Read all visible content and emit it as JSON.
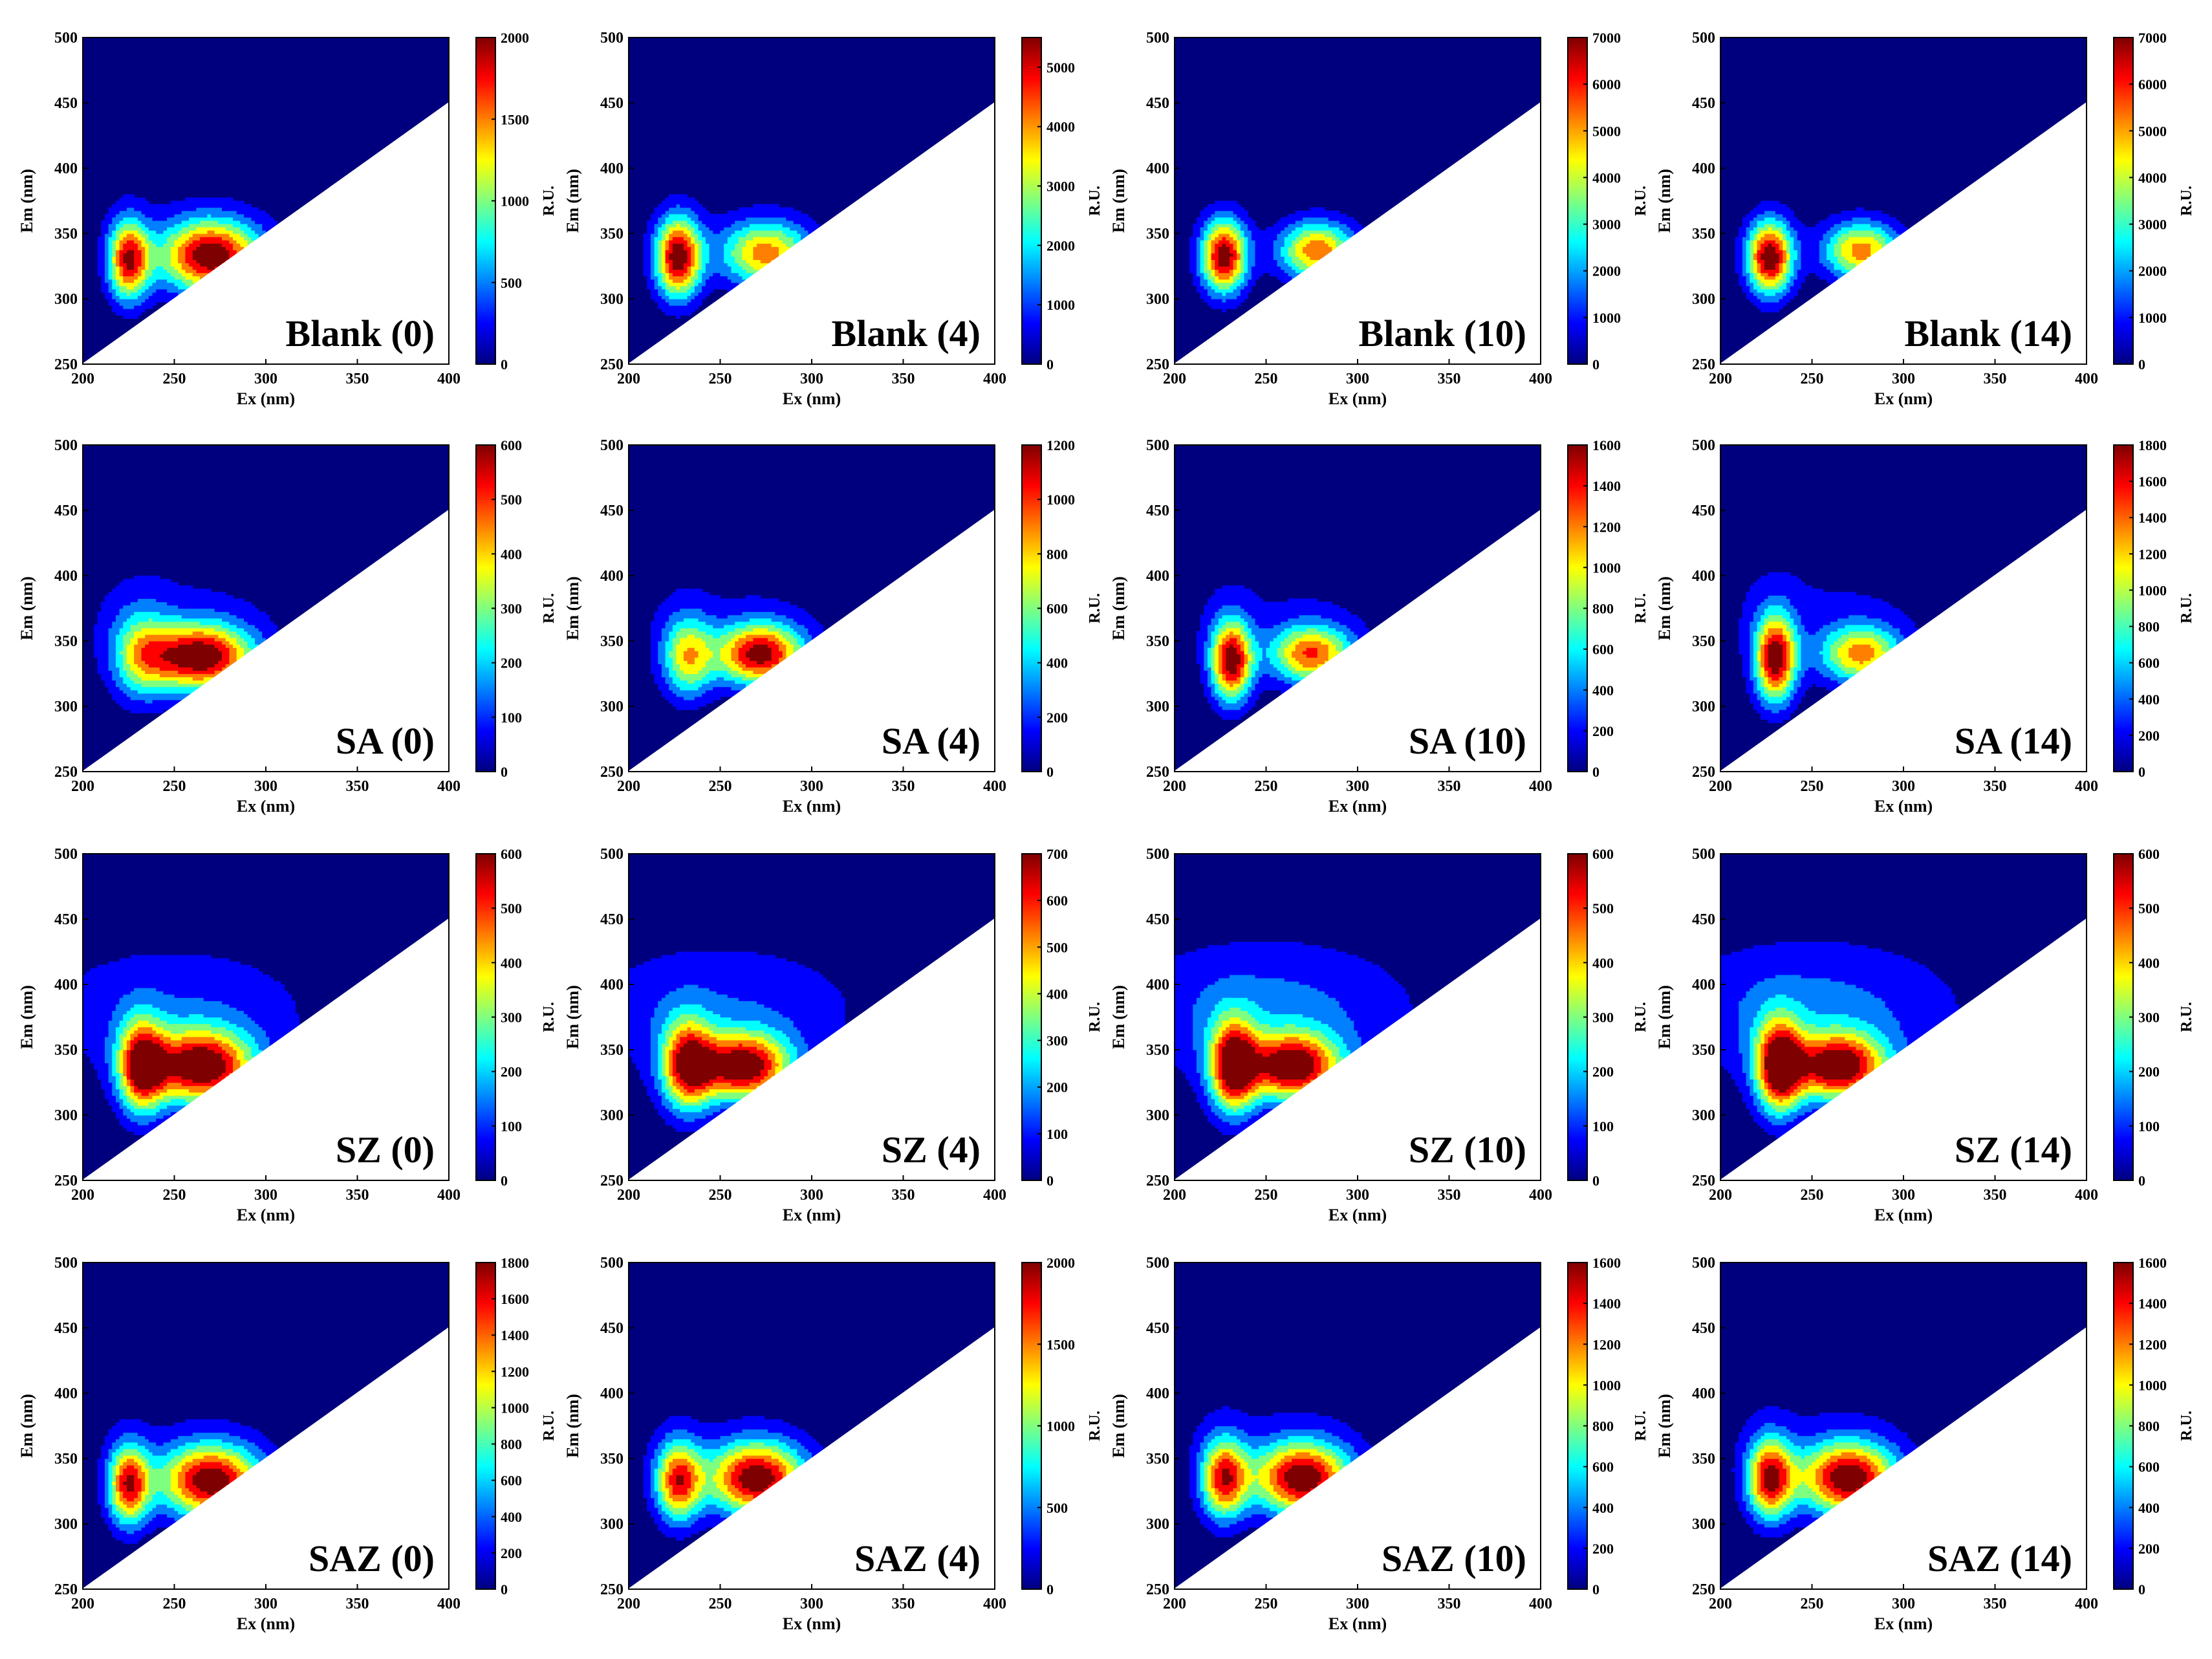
{
  "figure": {
    "rows": 4,
    "cols": 4,
    "colormap": [
      "#00007f",
      "#0000ff",
      "#007fff",
      "#00ffff",
      "#7fff7f",
      "#ffff00",
      "#ff7f00",
      "#ff0000",
      "#7f0000"
    ],
    "background_color": "#00008b",
    "contour_line_color": "#000000"
  },
  "chart_data": [
    {
      "type": "heatmap",
      "label": "Blank (0)",
      "xlabel": "Ex (nm)",
      "ylabel": "Em (nm)",
      "xlim": [
        200,
        400
      ],
      "ylim": [
        250,
        500
      ],
      "x_ticks": [
        200,
        250,
        300,
        350,
        400
      ],
      "y_ticks": [
        250,
        300,
        350,
        400,
        450,
        500
      ],
      "colorbar": {
        "label": "R.U.",
        "min": 0,
        "max": 2000,
        "ticks": [
          0,
          500,
          1000,
          1500,
          2000
        ]
      },
      "peaks": [
        {
          "ex": 225,
          "em": 330,
          "intensity": 1700,
          "sx": 8,
          "sy": 22
        },
        {
          "ex": 270,
          "em": 333,
          "intensity": 1950,
          "sx": 20,
          "sy": 20
        }
      ],
      "background_level": 80
    },
    {
      "type": "heatmap",
      "label": "Blank (4)",
      "xlabel": "Ex (nm)",
      "ylabel": "Em (nm)",
      "xlim": [
        200,
        400
      ],
      "ylim": [
        250,
        500
      ],
      "x_ticks": [
        200,
        250,
        300,
        350,
        400
      ],
      "y_ticks": [
        250,
        300,
        350,
        400,
        450,
        500
      ],
      "colorbar": {
        "label": "R.U.",
        "min": 0,
        "max": 5500,
        "ticks": [
          0,
          1000,
          2000,
          3000,
          4000,
          5000
        ]
      },
      "peaks": [
        {
          "ex": 227,
          "em": 332,
          "intensity": 5300,
          "sx": 9,
          "sy": 22
        },
        {
          "ex": 275,
          "em": 335,
          "intensity": 3900,
          "sx": 18,
          "sy": 18
        }
      ],
      "background_level": 150
    },
    {
      "type": "heatmap",
      "label": "Blank (10)",
      "xlabel": "Ex (nm)",
      "ylabel": "Em (nm)",
      "xlim": [
        200,
        400
      ],
      "ylim": [
        250,
        500
      ],
      "x_ticks": [
        200,
        250,
        300,
        350,
        400
      ],
      "y_ticks": [
        250,
        300,
        350,
        400,
        450,
        500
      ],
      "colorbar": {
        "label": "R.U.",
        "min": 0,
        "max": 7000,
        "ticks": [
          0,
          1000,
          2000,
          3000,
          4000,
          5000,
          6000,
          7000
        ]
      },
      "peaks": [
        {
          "ex": 227,
          "em": 333,
          "intensity": 6800,
          "sx": 9,
          "sy": 20
        },
        {
          "ex": 278,
          "em": 337,
          "intensity": 5200,
          "sx": 15,
          "sy": 16
        }
      ],
      "background_level": 100
    },
    {
      "type": "heatmap",
      "label": "Blank (14)",
      "xlabel": "Ex (nm)",
      "ylabel": "Em (nm)",
      "xlim": [
        200,
        400
      ],
      "ylim": [
        250,
        500
      ],
      "x_ticks": [
        200,
        250,
        300,
        350,
        400
      ],
      "y_ticks": [
        250,
        300,
        350,
        400,
        450,
        500
      ],
      "colorbar": {
        "label": "R.U.",
        "min": 0,
        "max": 7000,
        "ticks": [
          0,
          1000,
          2000,
          3000,
          4000,
          5000,
          6000,
          7000
        ]
      },
      "peaks": [
        {
          "ex": 227,
          "em": 332,
          "intensity": 6900,
          "sx": 9,
          "sy": 20
        },
        {
          "ex": 277,
          "em": 337,
          "intensity": 5000,
          "sx": 15,
          "sy": 16
        }
      ],
      "background_level": 100
    },
    {
      "type": "heatmap",
      "label": "SA (0)",
      "xlabel": "Ex (nm)",
      "ylabel": "Em (nm)",
      "xlim": [
        200,
        400
      ],
      "ylim": [
        250,
        500
      ],
      "x_ticks": [
        200,
        250,
        300,
        350,
        400
      ],
      "y_ticks": [
        250,
        300,
        350,
        400,
        450,
        500
      ],
      "colorbar": {
        "label": "R.U.",
        "min": 0,
        "max": 600,
        "ticks": [
          0,
          100,
          200,
          300,
          400,
          500,
          600
        ]
      },
      "peaks": [
        {
          "ex": 232,
          "em": 340,
          "intensity": 280,
          "sx": 12,
          "sy": 25
        },
        {
          "ex": 265,
          "em": 338,
          "intensity": 580,
          "sx": 20,
          "sy": 18
        }
      ],
      "background_level": 60
    },
    {
      "type": "heatmap",
      "label": "SA (4)",
      "xlabel": "Ex (nm)",
      "ylabel": "Em (nm)",
      "xlim": [
        200,
        400
      ],
      "ylim": [
        250,
        500
      ],
      "x_ticks": [
        200,
        250,
        300,
        350,
        400
      ],
      "y_ticks": [
        250,
        300,
        350,
        400,
        450,
        500
      ],
      "colorbar": {
        "label": "R.U.",
        "min": 0,
        "max": 1200,
        "ticks": [
          0,
          200,
          400,
          600,
          800,
          1000,
          1200
        ]
      },
      "peaks": [
        {
          "ex": 232,
          "em": 338,
          "intensity": 700,
          "sx": 10,
          "sy": 22
        },
        {
          "ex": 272,
          "em": 340,
          "intensity": 1100,
          "sx": 17,
          "sy": 17
        }
      ],
      "background_level": 100
    },
    {
      "type": "heatmap",
      "label": "SA (10)",
      "xlabel": "Ex (nm)",
      "ylabel": "Em (nm)",
      "xlim": [
        200,
        400
      ],
      "ylim": [
        250,
        500
      ],
      "x_ticks": [
        200,
        250,
        300,
        350,
        400
      ],
      "y_ticks": [
        250,
        300,
        350,
        400,
        450,
        500
      ],
      "colorbar": {
        "label": "R.U.",
        "min": 0,
        "max": 1600,
        "ticks": [
          0,
          200,
          400,
          600,
          800,
          1000,
          1200,
          1400,
          1600
        ]
      },
      "peaks": [
        {
          "ex": 231,
          "em": 335,
          "intensity": 1500,
          "sx": 8,
          "sy": 22
        },
        {
          "ex": 275,
          "em": 340,
          "intensity": 1200,
          "sx": 16,
          "sy": 16
        }
      ],
      "background_level": 150
    },
    {
      "type": "heatmap",
      "label": "SA (14)",
      "xlabel": "Ex (nm)",
      "ylabel": "Em (nm)",
      "xlim": [
        200,
        400
      ],
      "ylim": [
        250,
        500
      ],
      "x_ticks": [
        200,
        250,
        300,
        350,
        400
      ],
      "y_ticks": [
        250,
        300,
        350,
        400,
        450,
        500
      ],
      "colorbar": {
        "label": "R.U.",
        "min": 0,
        "max": 1800,
        "ticks": [
          0,
          200,
          400,
          600,
          800,
          1000,
          1200,
          1400,
          1600,
          1800
        ]
      },
      "peaks": [
        {
          "ex": 230,
          "em": 337,
          "intensity": 1700,
          "sx": 8,
          "sy": 24
        },
        {
          "ex": 277,
          "em": 340,
          "intensity": 1200,
          "sx": 16,
          "sy": 16
        }
      ],
      "background_level": 200
    },
    {
      "type": "heatmap",
      "label": "SZ (0)",
      "xlabel": "Ex (nm)",
      "ylabel": "Em (nm)",
      "xlim": [
        200,
        400
      ],
      "ylim": [
        250,
        500
      ],
      "x_ticks": [
        200,
        250,
        300,
        350,
        400
      ],
      "y_ticks": [
        250,
        300,
        350,
        400,
        450,
        500
      ],
      "colorbar": {
        "label": "R.U.",
        "min": 0,
        "max": 600,
        "ticks": [
          0,
          100,
          200,
          300,
          400,
          500,
          600
        ]
      },
      "peaks": [
        {
          "ex": 232,
          "em": 337,
          "intensity": 500,
          "sx": 9,
          "sy": 25
        },
        {
          "ex": 265,
          "em": 337,
          "intensity": 580,
          "sx": 20,
          "sy": 20
        }
      ],
      "background_level": 120
    },
    {
      "type": "heatmap",
      "label": "SZ (4)",
      "xlabel": "Ex (nm)",
      "ylabel": "Em (nm)",
      "xlim": [
        200,
        400
      ],
      "ylim": [
        250,
        500
      ],
      "x_ticks": [
        200,
        250,
        300,
        350,
        400
      ],
      "y_ticks": [
        250,
        300,
        350,
        400,
        450,
        500
      ],
      "colorbar": {
        "label": "R.U.",
        "min": 0,
        "max": 700,
        "ticks": [
          0,
          100,
          200,
          300,
          400,
          500,
          600,
          700
        ]
      },
      "peaks": [
        {
          "ex": 232,
          "em": 338,
          "intensity": 550,
          "sx": 10,
          "sy": 25
        },
        {
          "ex": 263,
          "em": 337,
          "intensity": 650,
          "sx": 18,
          "sy": 18
        }
      ],
      "background_level": 150
    },
    {
      "type": "heatmap",
      "label": "SZ (10)",
      "xlabel": "Ex (nm)",
      "ylabel": "Em (nm)",
      "xlim": [
        200,
        400
      ],
      "ylim": [
        250,
        500
      ],
      "x_ticks": [
        200,
        250,
        300,
        350,
        400
      ],
      "y_ticks": [
        250,
        300,
        350,
        400,
        450,
        500
      ],
      "colorbar": {
        "label": "R.U.",
        "min": 0,
        "max": 600,
        "ticks": [
          0,
          100,
          200,
          300,
          400,
          500,
          600
        ]
      },
      "peaks": [
        {
          "ex": 232,
          "em": 337,
          "intensity": 540,
          "sx": 9,
          "sy": 25
        },
        {
          "ex": 265,
          "em": 337,
          "intensity": 560,
          "sx": 18,
          "sy": 18
        }
      ],
      "background_level": 160
    },
    {
      "type": "heatmap",
      "label": "SZ (14)",
      "xlabel": "Ex (nm)",
      "ylabel": "Em (nm)",
      "xlim": [
        200,
        400
      ],
      "ylim": [
        250,
        500
      ],
      "x_ticks": [
        200,
        250,
        300,
        350,
        400
      ],
      "y_ticks": [
        250,
        300,
        350,
        400,
        450,
        500
      ],
      "colorbar": {
        "label": "R.U.",
        "min": 0,
        "max": 600,
        "ticks": [
          0,
          100,
          200,
          300,
          400,
          500,
          600
        ]
      },
      "peaks": [
        {
          "ex": 232,
          "em": 337,
          "intensity": 560,
          "sx": 9,
          "sy": 25
        },
        {
          "ex": 265,
          "em": 337,
          "intensity": 560,
          "sx": 18,
          "sy": 18
        }
      ],
      "background_level": 160
    },
    {
      "type": "heatmap",
      "label": "SAZ (0)",
      "xlabel": "Ex (nm)",
      "ylabel": "Em (nm)",
      "xlim": [
        200,
        400
      ],
      "ylim": [
        250,
        500
      ],
      "x_ticks": [
        200,
        250,
        300,
        350,
        400
      ],
      "y_ticks": [
        250,
        300,
        350,
        400,
        450,
        500
      ],
      "colorbar": {
        "label": "R.U.",
        "min": 0,
        "max": 1800,
        "ticks": [
          0,
          200,
          400,
          600,
          800,
          1000,
          1200,
          1400,
          1600,
          1800
        ]
      },
      "peaks": [
        {
          "ex": 225,
          "em": 330,
          "intensity": 1500,
          "sx": 8,
          "sy": 22
        },
        {
          "ex": 270,
          "em": 333,
          "intensity": 1750,
          "sx": 20,
          "sy": 20
        }
      ],
      "background_level": 100
    },
    {
      "type": "heatmap",
      "label": "SAZ (4)",
      "xlabel": "Ex (nm)",
      "ylabel": "Em (nm)",
      "xlim": [
        200,
        400
      ],
      "ylim": [
        250,
        500
      ],
      "x_ticks": [
        200,
        250,
        300,
        350,
        400
      ],
      "y_ticks": [
        250,
        300,
        350,
        400,
        450,
        500
      ],
      "colorbar": {
        "label": "R.U.",
        "min": 0,
        "max": 2000,
        "ticks": [
          0,
          500,
          1000,
          1500,
          2000
        ]
      },
      "peaks": [
        {
          "ex": 227,
          "em": 333,
          "intensity": 1600,
          "sx": 9,
          "sy": 22
        },
        {
          "ex": 270,
          "em": 335,
          "intensity": 1950,
          "sx": 19,
          "sy": 20
        }
      ],
      "background_level": 100
    },
    {
      "type": "heatmap",
      "label": "SAZ (10)",
      "xlabel": "Ex (nm)",
      "ylabel": "Em (nm)",
      "xlim": [
        200,
        400
      ],
      "ylim": [
        250,
        500
      ],
      "x_ticks": [
        200,
        250,
        300,
        350,
        400
      ],
      "y_ticks": [
        250,
        300,
        350,
        400,
        450,
        500
      ],
      "colorbar": {
        "label": "R.U.",
        "min": 0,
        "max": 1600,
        "ticks": [
          0,
          200,
          400,
          600,
          800,
          1000,
          1200,
          1400,
          1600
        ]
      },
      "peaks": [
        {
          "ex": 227,
          "em": 335,
          "intensity": 1300,
          "sx": 9,
          "sy": 22
        },
        {
          "ex": 270,
          "em": 335,
          "intensity": 1550,
          "sx": 19,
          "sy": 20
        }
      ],
      "background_level": 120
    },
    {
      "type": "heatmap",
      "label": "SAZ (14)",
      "xlabel": "Ex (nm)",
      "ylabel": "Em (nm)",
      "xlim": [
        200,
        400
      ],
      "ylim": [
        250,
        500
      ],
      "x_ticks": [
        200,
        250,
        300,
        350,
        400
      ],
      "y_ticks": [
        250,
        300,
        350,
        400,
        450,
        500
      ],
      "colorbar": {
        "label": "R.U.",
        "min": 0,
        "max": 1600,
        "ticks": [
          0,
          200,
          400,
          600,
          800,
          1000,
          1200,
          1400,
          1600
        ]
      },
      "peaks": [
        {
          "ex": 227,
          "em": 335,
          "intensity": 1400,
          "sx": 9,
          "sy": 22
        },
        {
          "ex": 270,
          "em": 335,
          "intensity": 1550,
          "sx": 19,
          "sy": 20
        }
      ],
      "background_level": 120
    }
  ]
}
